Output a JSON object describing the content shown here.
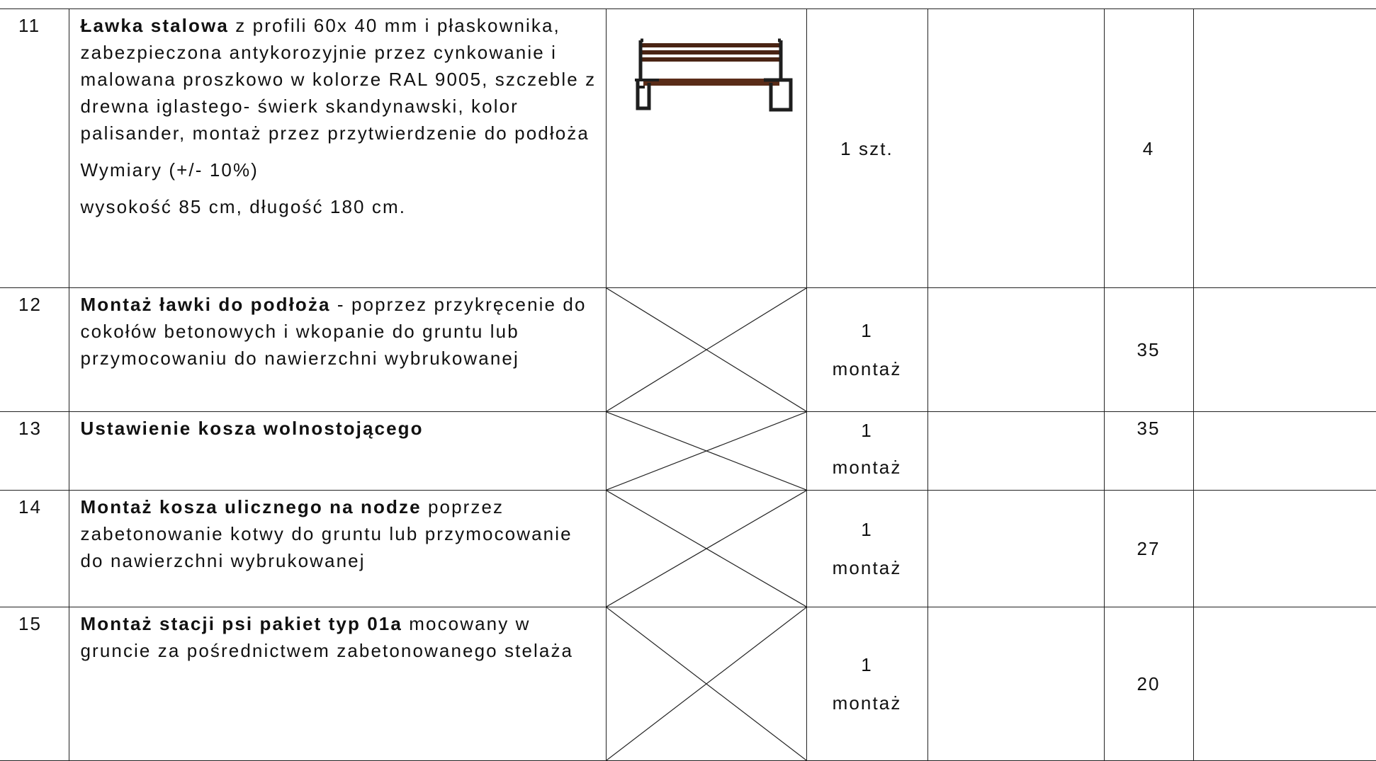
{
  "table": {
    "rows": [
      {
        "number": "11",
        "title": "Ławka stalowa",
        "text": " z profili 60x 40 mm i płaskownika, zabezpieczona antykorozyjnie przez cynkowanie i malowana proszkowo w kolorze RAL 9005, szczeble z drewna iglastego- świerk skandynawski, kolor palisander, montaż przez przytwierdzenie do podłoża",
        "notes": [
          "Wymiary (+/- 10%)",
          "wysokość 85 cm, długość 180 cm."
        ],
        "unit": [
          "1 szt."
        ],
        "quantity": "4"
      },
      {
        "number": "12",
        "title": "Montaż ławki do podłoża",
        "text": " - poprzez przykręcenie do cokołów betonowych i wkopanie do gruntu lub przymocowaniu do nawierzchni wybrukowanej",
        "unit": [
          "1",
          "montaż"
        ],
        "quantity": "35"
      },
      {
        "number": "13",
        "title": "Ustawienie kosza wolnostojącego",
        "unit": [
          "1",
          "montaż"
        ],
        "quantity": "35"
      },
      {
        "number": "14",
        "title": "Montaż kosza ulicznego na nodze",
        "text": " poprzez zabetonowanie kotwy do gruntu lub przymocowanie do nawierzchni wybrukowanej",
        "unit": [
          "1",
          "montaż"
        ],
        "quantity": "27"
      },
      {
        "number": "15",
        "title": "Montaż stacji psi pakiet typ 01a",
        "text": "  mocowany w gruncie za pośrednictwem zabetonowanego stelaża",
        "unit": [
          "1",
          "montaż"
        ],
        "quantity": "20"
      }
    ]
  }
}
